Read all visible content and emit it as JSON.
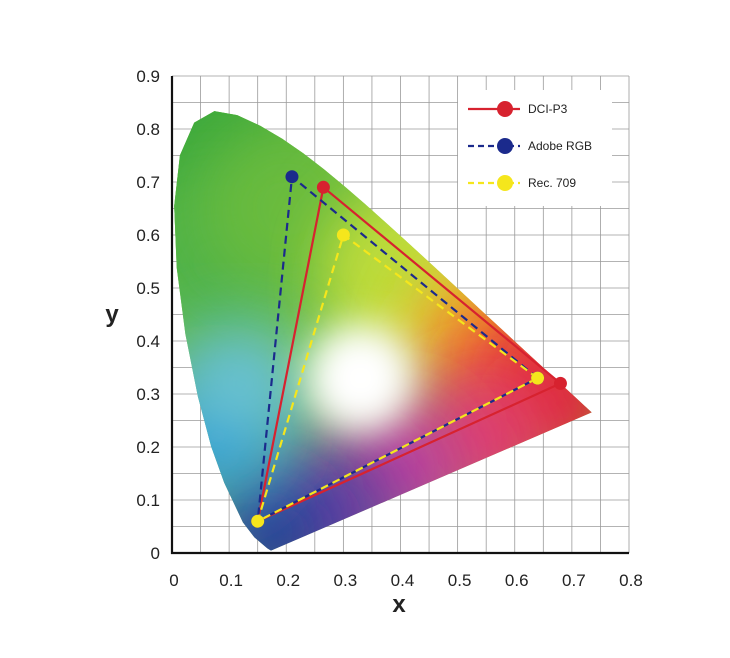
{
  "chart_data": {
    "type": "scatter",
    "xlabel": "x",
    "ylabel": "y",
    "xlim": [
      0,
      0.8
    ],
    "ylim": [
      0,
      0.9
    ],
    "x_ticks": [
      "0",
      "0.1",
      "0.2",
      "0.3",
      "0.4",
      "0.5",
      "0.6",
      "0.7",
      "0.8"
    ],
    "y_ticks": [
      "0",
      "0.1",
      "0.2",
      "0.3",
      "0.4",
      "0.5",
      "0.6",
      "0.7",
      "0.8",
      "0.9"
    ],
    "grid": true,
    "legend_position": "top-right",
    "spectral_locus": [
      [
        0.1741,
        0.005
      ],
      [
        0.173,
        0.0048
      ],
      [
        0.1666,
        0.0089
      ],
      [
        0.144,
        0.0297
      ],
      [
        0.1241,
        0.0578
      ],
      [
        0.0913,
        0.1327
      ],
      [
        0.0687,
        0.2007
      ],
      [
        0.0454,
        0.295
      ],
      [
        0.0235,
        0.4127
      ],
      [
        0.0082,
        0.5384
      ],
      [
        0.0039,
        0.6548
      ],
      [
        0.0139,
        0.7502
      ],
      [
        0.0389,
        0.812
      ],
      [
        0.0743,
        0.8338
      ],
      [
        0.1142,
        0.8262
      ],
      [
        0.1547,
        0.8059
      ],
      [
        0.1929,
        0.7816
      ],
      [
        0.2296,
        0.7543
      ],
      [
        0.2658,
        0.7243
      ],
      [
        0.3016,
        0.6923
      ],
      [
        0.3373,
        0.6589
      ],
      [
        0.3731,
        0.6245
      ],
      [
        0.4087,
        0.5896
      ],
      [
        0.4441,
        0.5547
      ],
      [
        0.4788,
        0.5202
      ],
      [
        0.5125,
        0.4866
      ],
      [
        0.5448,
        0.4544
      ],
      [
        0.5752,
        0.4242
      ],
      [
        0.6029,
        0.3965
      ],
      [
        0.627,
        0.3725
      ],
      [
        0.6482,
        0.3514
      ],
      [
        0.6658,
        0.334
      ],
      [
        0.6801,
        0.3197
      ],
      [
        0.6915,
        0.3083
      ],
      [
        0.7006,
        0.2993
      ],
      [
        0.7079,
        0.292
      ],
      [
        0.714,
        0.2859
      ],
      [
        0.719,
        0.2809
      ],
      [
        0.723,
        0.277
      ],
      [
        0.726,
        0.274
      ],
      [
        0.7283,
        0.2717
      ],
      [
        0.7347,
        0.2653
      ]
    ],
    "series": [
      {
        "name": "DCI-P3",
        "color": "#d7222f",
        "dash": "solid",
        "points": [
          [
            0.68,
            0.32
          ],
          [
            0.265,
            0.69
          ],
          [
            0.15,
            0.06
          ]
        ]
      },
      {
        "name": "Adobe RGB",
        "color": "#1b2a8c",
        "dash": "dashed",
        "points": [
          [
            0.64,
            0.33
          ],
          [
            0.21,
            0.71
          ],
          [
            0.15,
            0.06
          ]
        ]
      },
      {
        "name": "Rec. 709",
        "color": "#f5e61c",
        "dash": "dashed",
        "points": [
          [
            0.64,
            0.33
          ],
          [
            0.3,
            0.6
          ],
          [
            0.15,
            0.06
          ]
        ]
      }
    ]
  }
}
